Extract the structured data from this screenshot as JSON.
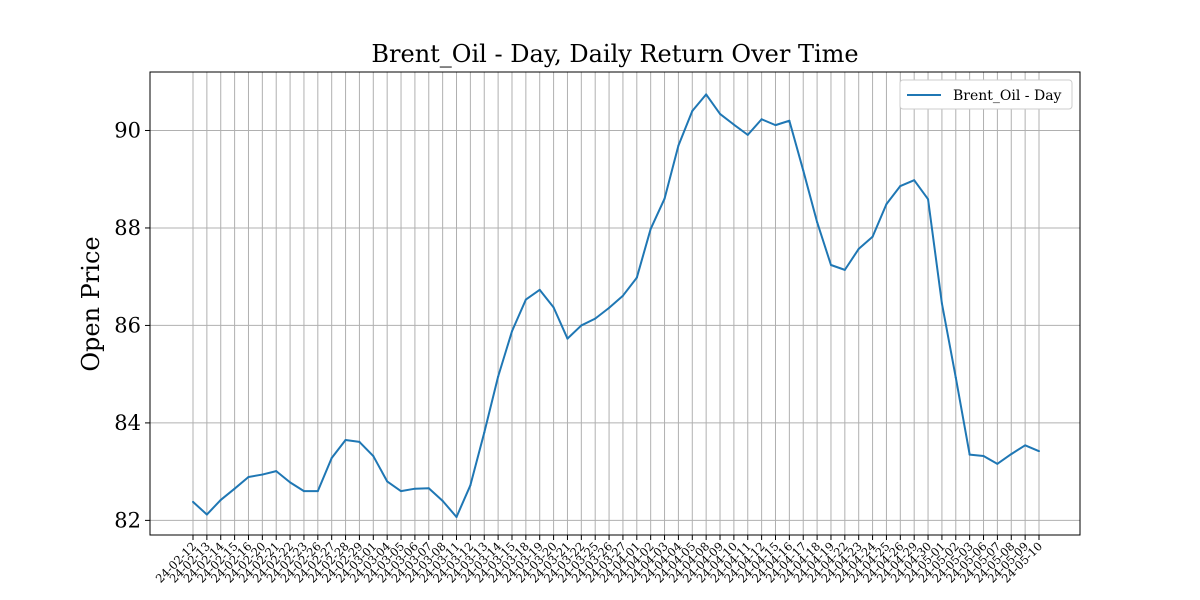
{
  "chart_data": {
    "type": "line",
    "title": "Brent_Oil - Day, Daily Return Over Time",
    "xlabel": "",
    "ylabel": "Open Price",
    "ylim": [
      81.7,
      91.2
    ],
    "yticks": [
      82,
      84,
      86,
      88,
      90
    ],
    "grid": true,
    "legend_position": "top-right",
    "series_color": "#1f77b4",
    "x": [
      "24-02-12",
      "24-02-13",
      "24-02-14",
      "24-02-15",
      "24-02-16",
      "24-02-20",
      "24-02-21",
      "24-02-22",
      "24-02-23",
      "24-02-26",
      "24-02-27",
      "24-02-28",
      "24-02-29",
      "24-03-01",
      "24-03-04",
      "24-03-05",
      "24-03-06",
      "24-03-07",
      "24-03-08",
      "24-03-11",
      "24-03-12",
      "24-03-13",
      "24-03-14",
      "24-03-15",
      "24-03-18",
      "24-03-19",
      "24-03-20",
      "24-03-21",
      "24-03-22",
      "24-03-25",
      "24-03-26",
      "24-03-27",
      "24-04-01",
      "24-04-02",
      "24-04-03",
      "24-04-04",
      "24-04-05",
      "24-04-08",
      "24-04-09",
      "24-04-10",
      "24-04-11",
      "24-04-12",
      "24-04-15",
      "24-04-16",
      "24-04-17",
      "24-04-18",
      "24-04-19",
      "24-04-22",
      "24-04-23",
      "24-04-24",
      "24-04-25",
      "24-04-26",
      "24-04-29",
      "24-04-30",
      "24-05-01",
      "24-05-02",
      "24-05-03",
      "24-05-06",
      "24-05-07",
      "24-05-08",
      "24-05-09",
      "24-05-10"
    ],
    "series": [
      {
        "name": "Brent_Oil - Day",
        "values": [
          82.38,
          82.12,
          82.42,
          82.65,
          82.89,
          82.94,
          83.01,
          82.78,
          82.6,
          82.6,
          83.28,
          83.65,
          83.61,
          83.32,
          82.8,
          82.6,
          82.65,
          82.66,
          82.4,
          82.07,
          82.72,
          83.8,
          84.95,
          85.88,
          86.53,
          86.73,
          86.37,
          85.73,
          86.0,
          86.14,
          86.36,
          86.61,
          86.98,
          87.98,
          88.6,
          89.69,
          90.4,
          90.74,
          90.34,
          90.12,
          89.91,
          90.23,
          90.11,
          90.2,
          89.18,
          88.12,
          87.24,
          87.14,
          87.57,
          87.82,
          88.49,
          88.86,
          88.98,
          88.59,
          86.45,
          84.93,
          83.35,
          83.32,
          83.16,
          83.36,
          83.54,
          83.42
        ]
      }
    ]
  }
}
